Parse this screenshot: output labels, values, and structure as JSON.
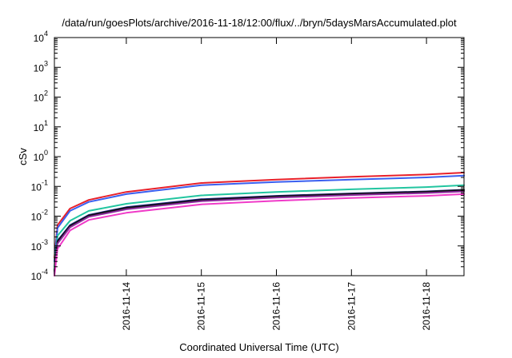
{
  "chart_data": {
    "type": "line",
    "title": "/data/run/goesPlots/archive/2016-11-18/12:00/flux/../bryn/5daysMarsAccumulated.plot",
    "xlabel": "Coordinated Universal Time (UTC)",
    "ylabel": "cSv",
    "yscale": "log",
    "ylim": [
      0.0001,
      10000
    ],
    "xlim": [
      "2016-11-13 01:00",
      "2016-11-18 12:00"
    ],
    "y_ticks": [
      {
        "base": "10",
        "exp": "-4"
      },
      {
        "base": "10",
        "exp": "-3"
      },
      {
        "base": "10",
        "exp": "-2"
      },
      {
        "base": "10",
        "exp": "-1"
      },
      {
        "base": "10",
        "exp": "0"
      },
      {
        "base": "10",
        "exp": "1"
      },
      {
        "base": "10",
        "exp": "2"
      },
      {
        "base": "10",
        "exp": "3"
      },
      {
        "base": "10",
        "exp": "4"
      }
    ],
    "x_ticks": [
      "2016-11-14",
      "2016-11-15",
      "2016-11-16",
      "2016-11-17",
      "2016-11-18"
    ],
    "grid": false,
    "x": [
      "2016-11-13 01:00",
      "2016-11-13 02:00",
      "2016-11-13 06:00",
      "2016-11-13 12:00",
      "2016-11-14 00:00",
      "2016-11-15 00:00",
      "2016-11-16 00:00",
      "2016-11-17 00:00",
      "2016-11-18 00:00",
      "2016-11-18 12:00"
    ],
    "series": [
      {
        "color": "#e8202a",
        "values": [
          0.0004,
          0.005,
          0.018,
          0.035,
          0.065,
          0.13,
          0.17,
          0.21,
          0.25,
          0.29
        ]
      },
      {
        "color": "#3a5ff0",
        "values": [
          0.0003,
          0.004,
          0.015,
          0.03,
          0.055,
          0.11,
          0.14,
          0.17,
          0.2,
          0.23
        ]
      },
      {
        "color": "#22c5a0",
        "values": [
          0.0002,
          0.0022,
          0.007,
          0.015,
          0.026,
          0.05,
          0.065,
          0.08,
          0.095,
          0.11
        ]
      },
      {
        "color": "#20208a",
        "values": [
          0.00015,
          0.0015,
          0.005,
          0.011,
          0.02,
          0.037,
          0.048,
          0.058,
          0.068,
          0.077
        ]
      },
      {
        "color": "#111111",
        "values": [
          0.00014,
          0.0014,
          0.0047,
          0.0105,
          0.019,
          0.035,
          0.046,
          0.056,
          0.066,
          0.075
        ]
      },
      {
        "color": "#8a2a9c",
        "values": [
          0.00012,
          0.0012,
          0.0042,
          0.0095,
          0.017,
          0.032,
          0.042,
          0.051,
          0.06,
          0.068
        ]
      },
      {
        "color": "#f03ac8",
        "values": [
          0.0001,
          0.0008,
          0.0033,
          0.0075,
          0.013,
          0.025,
          0.033,
          0.041,
          0.048,
          0.055
        ]
      }
    ]
  }
}
